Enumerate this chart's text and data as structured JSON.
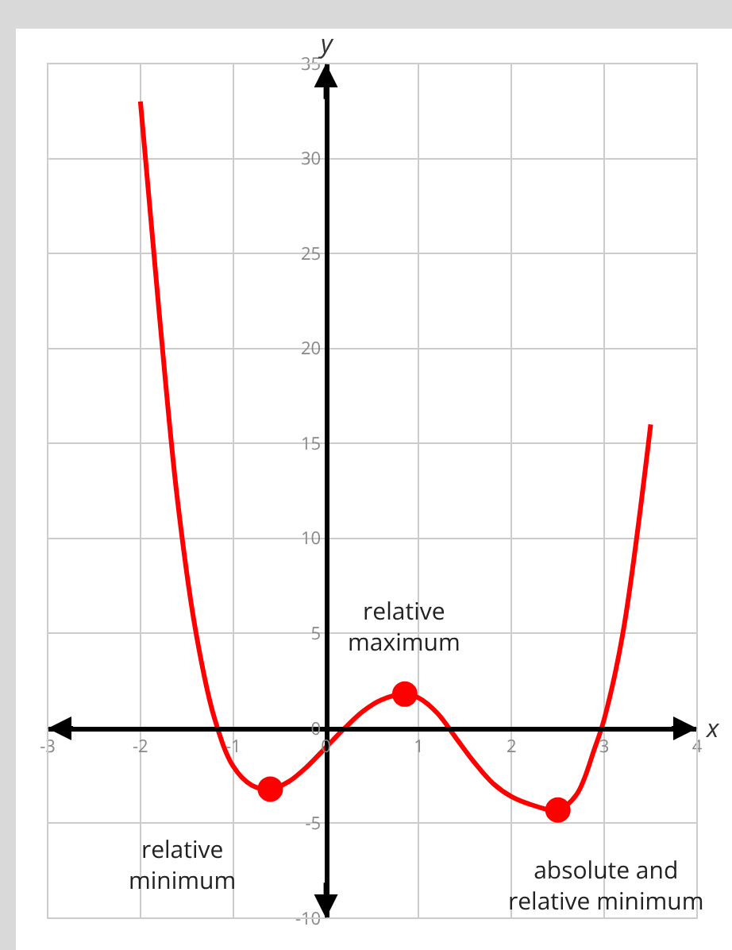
{
  "chart_data": {
    "type": "line",
    "xlabel": "x",
    "ylabel": "y",
    "xlim": [
      -3,
      4
    ],
    "xticks": [
      -3,
      -2,
      -1,
      0,
      1,
      2,
      3,
      4
    ],
    "ylim": [
      -10,
      35
    ],
    "yticks": [
      -10,
      -5,
      0,
      5,
      10,
      15,
      20,
      25,
      30,
      35
    ],
    "grid": true,
    "legend": false,
    "series": [
      {
        "color": "#ff0000",
        "line_style": "solid",
        "x": [
          -2,
          -1.8,
          -1.6,
          -1.4,
          -1.2,
          -1,
          -0.8,
          -0.6,
          -0.4,
          -0.2,
          0,
          0.2,
          0.4,
          0.6,
          0.85,
          1.0,
          1.2,
          1.4,
          1.6,
          1.8,
          2.0,
          2.2,
          2.5,
          2.7,
          2.9,
          3.0,
          3.2,
          3.5
        ],
        "values": [
          33,
          22,
          12,
          5,
          0.5,
          -2,
          -3,
          -3.2,
          -2.8,
          -2,
          -1,
          0,
          0.9,
          1.5,
          1.8,
          1.6,
          0.8,
          -0.5,
          -1.8,
          -2.9,
          -3.6,
          -4.0,
          -4.3,
          -3.5,
          -1,
          0.5,
          5,
          16
        ]
      },
      {
        "type": "scatter",
        "color": "#ff0000",
        "marker": "circle",
        "x": [
          -0.6,
          0.85,
          2.5
        ],
        "values": [
          -3.2,
          1.8,
          -4.3
        ]
      }
    ],
    "annotations": [
      {
        "text": "relative minimum",
        "x": -0.6,
        "y": -3.2
      },
      {
        "text": "relative maximum",
        "x": 0.85,
        "y": 1.8
      },
      {
        "text": "absolute and relative minimum",
        "x": 2.5,
        "y": -4.3
      }
    ]
  }
}
